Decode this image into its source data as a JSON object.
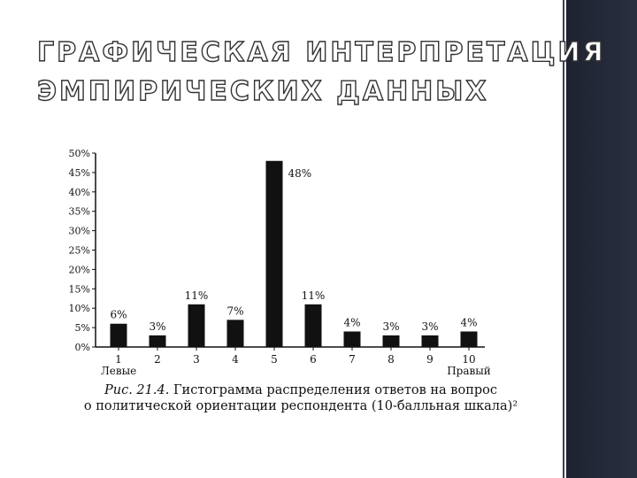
{
  "slide": {
    "title_line1": "ГРАФИЧЕСКАЯ ИНТЕРПРЕТАЦИЯ",
    "title_line2": "ЭМПИРИЧЕСКИХ ДАННЫХ"
  },
  "caption": {
    "figure_label": "Рис. 21.4.",
    "line1": "Гистограмма распределения ответов на вопрос",
    "line2": "о политической ориентации респондента (10-балльная шкала)²"
  },
  "chart_data": {
    "type": "bar",
    "categories": [
      "1",
      "2",
      "3",
      "4",
      "5",
      "6",
      "7",
      "8",
      "9",
      "10"
    ],
    "category_sublabels": {
      "0": "Левые",
      "9": "Правый"
    },
    "values": [
      6,
      3,
      11,
      7,
      48,
      11,
      4,
      3,
      3,
      4
    ],
    "value_labels": [
      "6%",
      "3%",
      "11%",
      "7%",
      "48%",
      "11%",
      "4%",
      "3%",
      "3%",
      "4%"
    ],
    "yticks": [
      "0%",
      "5%",
      "10%",
      "15%",
      "20%",
      "25%",
      "30%",
      "35%",
      "40%",
      "45%",
      "50%"
    ],
    "ylim": [
      0,
      50
    ],
    "grid": false,
    "bar_color": "#111111"
  }
}
